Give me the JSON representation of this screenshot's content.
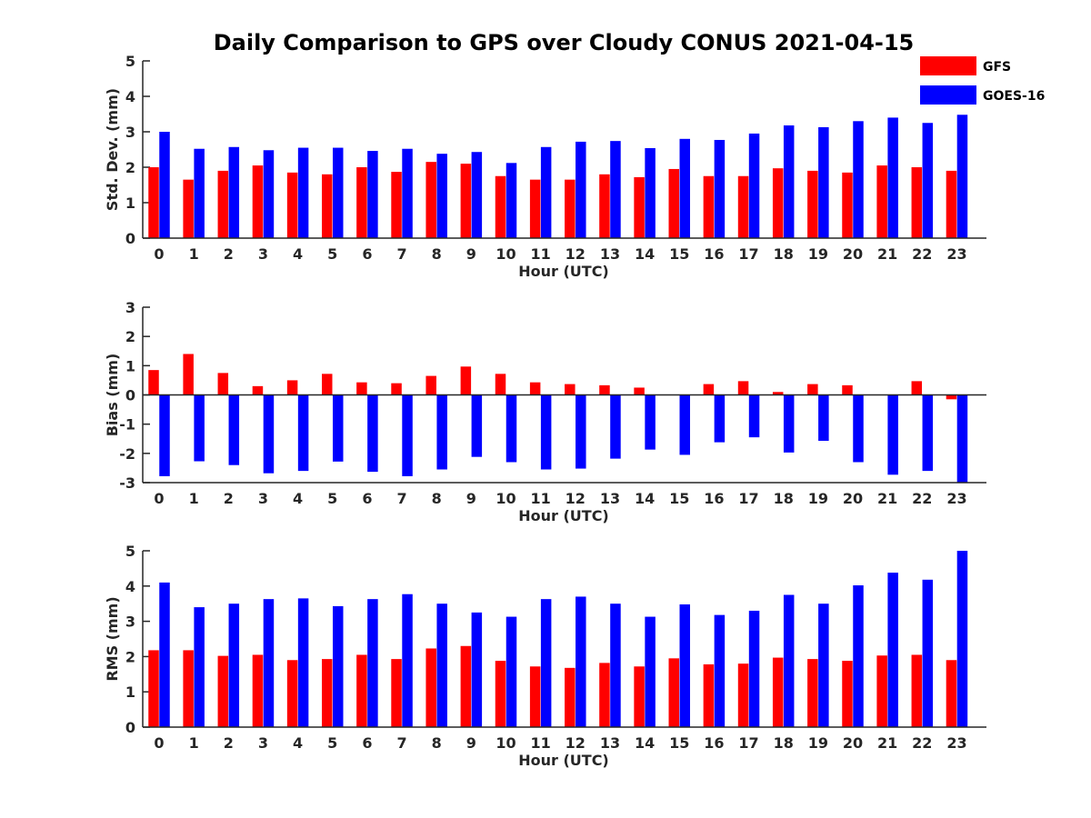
{
  "title": "Daily Comparison to GPS over Cloudy CONUS 2021-04-15",
  "legend": {
    "placement": "top-right",
    "items": [
      {
        "label": "GFS",
        "color": "#ff0000"
      },
      {
        "label": "GOES-16",
        "color": "#0000ff"
      }
    ]
  },
  "chart_data": [
    {
      "type": "bar",
      "xlabel": "Hour (UTC)",
      "ylabel": "Std. Dev. (mm)",
      "ylim": [
        0,
        5
      ],
      "yticks": [
        0,
        1,
        2,
        3,
        4,
        5
      ],
      "categories": [
        "0",
        "1",
        "2",
        "3",
        "4",
        "5",
        "6",
        "7",
        "8",
        "9",
        "10",
        "11",
        "12",
        "13",
        "14",
        "15",
        "16",
        "17",
        "18",
        "19",
        "20",
        "21",
        "22",
        "23"
      ],
      "series": [
        {
          "name": "GFS",
          "color": "#ff0000",
          "values": [
            2.0,
            1.65,
            1.9,
            2.05,
            1.85,
            1.8,
            2.0,
            1.87,
            2.15,
            2.1,
            1.75,
            1.65,
            1.65,
            1.8,
            1.72,
            1.95,
            1.75,
            1.75,
            1.97,
            1.9,
            1.85,
            2.05,
            2.0,
            1.9
          ]
        },
        {
          "name": "GOES-16",
          "color": "#0000ff",
          "values": [
            3.0,
            2.52,
            2.57,
            2.48,
            2.55,
            2.55,
            2.46,
            2.52,
            2.38,
            2.43,
            2.12,
            2.57,
            2.72,
            2.74,
            2.54,
            2.8,
            2.77,
            2.95,
            3.18,
            3.13,
            3.3,
            3.4,
            3.25,
            3.48
          ]
        }
      ]
    },
    {
      "type": "bar",
      "xlabel": "Hour (UTC)",
      "ylabel": "Bias (mm)",
      "ylim": [
        -3,
        3
      ],
      "yticks": [
        -3,
        -2,
        -1,
        0,
        1,
        2,
        3
      ],
      "categories": [
        "0",
        "1",
        "2",
        "3",
        "4",
        "5",
        "6",
        "7",
        "8",
        "9",
        "10",
        "11",
        "12",
        "13",
        "14",
        "15",
        "16",
        "17",
        "18",
        "19",
        "20",
        "21",
        "22",
        "23"
      ],
      "series": [
        {
          "name": "GFS",
          "color": "#ff0000",
          "values": [
            0.85,
            1.4,
            0.75,
            0.3,
            0.5,
            0.72,
            0.43,
            0.4,
            0.65,
            0.97,
            0.72,
            0.43,
            0.37,
            0.33,
            0.25,
            0.0,
            0.37,
            0.47,
            0.1,
            0.37,
            0.33,
            0.0,
            0.47,
            -0.15
          ]
        },
        {
          "name": "GOES-16",
          "color": "#0000ff",
          "values": [
            -2.78,
            -2.27,
            -2.4,
            -2.68,
            -2.6,
            -2.28,
            -2.63,
            -2.78,
            -2.55,
            -2.12,
            -2.3,
            -2.55,
            -2.52,
            -2.18,
            -1.87,
            -2.05,
            -1.62,
            -1.45,
            -1.97,
            -1.57,
            -2.3,
            -2.73,
            -2.6,
            -3.0
          ]
        }
      ]
    },
    {
      "type": "bar",
      "xlabel": "Hour (UTC)",
      "ylabel": "RMS (mm)",
      "ylim": [
        0,
        5
      ],
      "yticks": [
        0,
        1,
        2,
        3,
        4,
        5
      ],
      "categories": [
        "0",
        "1",
        "2",
        "3",
        "4",
        "5",
        "6",
        "7",
        "8",
        "9",
        "10",
        "11",
        "12",
        "13",
        "14",
        "15",
        "16",
        "17",
        "18",
        "19",
        "20",
        "21",
        "22",
        "23"
      ],
      "series": [
        {
          "name": "GFS",
          "color": "#ff0000",
          "values": [
            2.18,
            2.18,
            2.02,
            2.05,
            1.9,
            1.93,
            2.05,
            1.93,
            2.23,
            2.3,
            1.88,
            1.72,
            1.68,
            1.82,
            1.72,
            1.95,
            1.78,
            1.8,
            1.97,
            1.93,
            1.88,
            2.03,
            2.05,
            1.9
          ]
        },
        {
          "name": "GOES-16",
          "color": "#0000ff",
          "values": [
            4.1,
            3.4,
            3.5,
            3.63,
            3.65,
            3.43,
            3.63,
            3.77,
            3.5,
            3.25,
            3.13,
            3.63,
            3.7,
            3.5,
            3.13,
            3.48,
            3.18,
            3.3,
            3.75,
            3.5,
            4.02,
            4.38,
            4.18,
            5.0
          ]
        }
      ]
    }
  ]
}
